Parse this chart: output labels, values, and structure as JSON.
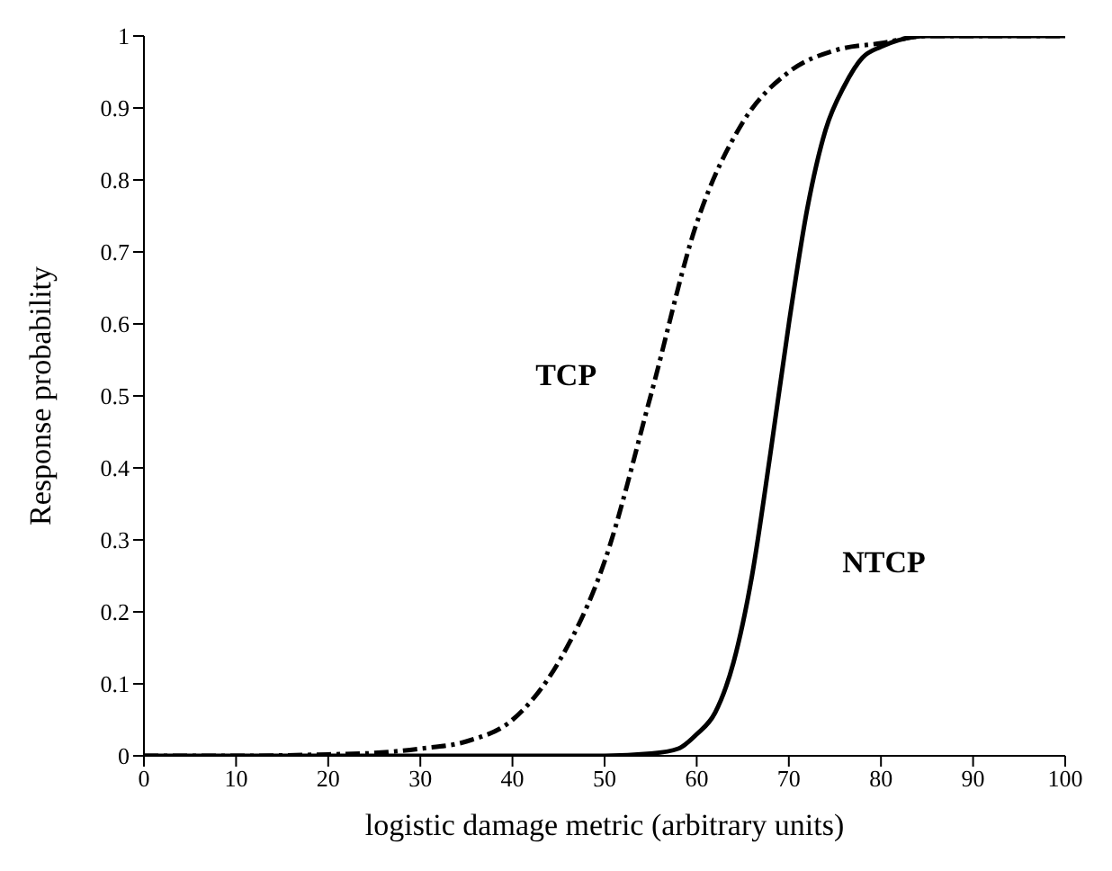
{
  "chart_data": {
    "type": "line",
    "xlabel": "logistic damage metric (arbitrary units)",
    "ylabel": "Response probability",
    "xlim": [
      0,
      100
    ],
    "xticks": [
      0,
      10,
      20,
      30,
      40,
      50,
      60,
      70,
      80,
      90,
      100
    ],
    "ylim": [
      0,
      1
    ],
    "yticks": [
      0,
      0.1,
      0.2,
      0.3,
      0.4,
      0.5,
      0.6,
      0.7,
      0.8,
      0.9,
      1
    ],
    "grid": false,
    "legend": false,
    "marker": "none",
    "series": [
      {
        "name": "TCP",
        "color": "#000000",
        "line_style": "dashed",
        "x": [
          0,
          10,
          20,
          25,
          30,
          35,
          40,
          45,
          50,
          55,
          60,
          65,
          70,
          75,
          80,
          85,
          90,
          100
        ],
        "values": [
          0,
          0,
          0.002,
          0.004,
          0.01,
          0.02,
          0.05,
          0.13,
          0.27,
          0.5,
          0.74,
          0.88,
          0.95,
          0.98,
          0.99,
          1,
          1,
          1
        ]
      },
      {
        "name": "NTCP",
        "color": "#000000",
        "line_style": "solid",
        "x": [
          0,
          20,
          40,
          50,
          55,
          58,
          60,
          62,
          64,
          66,
          68,
          70,
          72,
          74,
          76,
          78,
          80,
          85,
          90,
          100
        ],
        "values": [
          0,
          0,
          0,
          0,
          0.003,
          0.01,
          0.03,
          0.06,
          0.13,
          0.25,
          0.42,
          0.6,
          0.76,
          0.87,
          0.93,
          0.97,
          0.985,
          1,
          1,
          1
        ]
      }
    ]
  }
}
